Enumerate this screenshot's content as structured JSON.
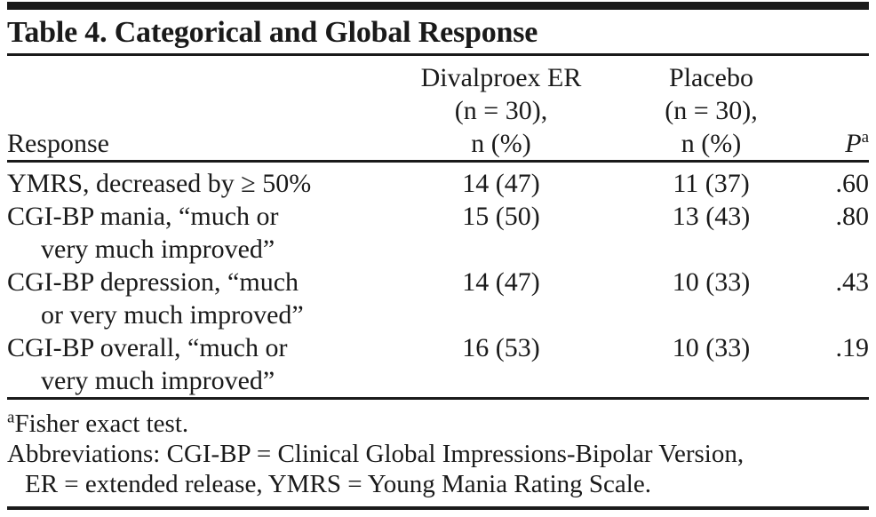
{
  "table": {
    "title": "Table 4. Categorical and Global Response",
    "header": {
      "response": "Response",
      "divalproex": [
        "Divalproex ER",
        "(n = 30),",
        "n (%)"
      ],
      "placebo": [
        "Placebo",
        "(n = 30),",
        "n (%)"
      ],
      "p_label": "P",
      "p_sup": "a"
    },
    "rows": [
      {
        "label_lines": [
          "YMRS, decreased by ≥ 50%"
        ],
        "divalproex": "14 (47)",
        "placebo": "11 (37)",
        "p": ".60"
      },
      {
        "label_lines": [
          "CGI-BP mania, “much or",
          "very much improved”"
        ],
        "divalproex": "15 (50)",
        "placebo": "13 (43)",
        "p": ".80"
      },
      {
        "label_lines": [
          "CGI-BP depression, “much",
          "or very much improved”"
        ],
        "divalproex": "14 (47)",
        "placebo": "10 (33)",
        "p": ".43"
      },
      {
        "label_lines": [
          "CGI-BP overall, “much or",
          "very much improved”"
        ],
        "divalproex": "16 (53)",
        "placebo": "10 (33)",
        "p": ".19"
      }
    ],
    "footnotes": {
      "fisher_sup": "a",
      "fisher_text": "Fisher exact test.",
      "abbrev_line1": "Abbreviations: CGI-BP = Clinical Global Impressions-Bipolar Version,",
      "abbrev_line2": "ER = extended release, YMRS = Young Mania Rating Scale."
    },
    "colors": {
      "text": "#1a1a1a",
      "rule": "#1a1a1a",
      "background": "#ffffff"
    }
  }
}
